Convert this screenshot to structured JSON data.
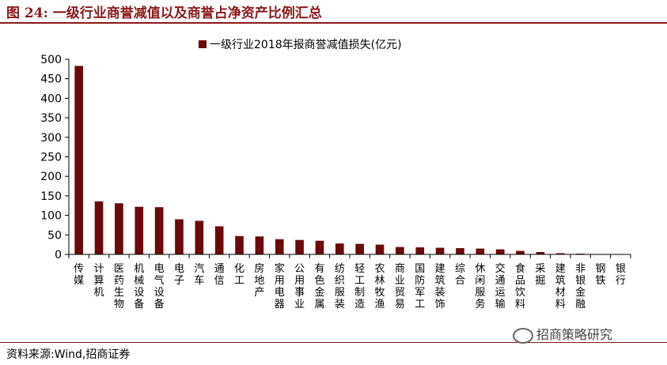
{
  "figure_title": "图 24:  一级行业商誉减值以及商誉占净资产比例汇总",
  "source": "资料来源:Wind,招商证券",
  "watermark": "招商策略研究",
  "colors": {
    "bar": "#6b0a0a",
    "accent": "#8b1a1a"
  },
  "chart_data": {
    "type": "bar",
    "title": "",
    "xlabel": "",
    "ylabel": "",
    "ylim": [
      0,
      500
    ],
    "yticks": [
      0,
      50,
      100,
      150,
      200,
      250,
      300,
      350,
      400,
      450,
      500
    ],
    "grid": false,
    "legend_position": "top-center",
    "categories": [
      "传媒",
      "计算机",
      "医药生物",
      "机械设备",
      "电气设备",
      "电子",
      "汽车",
      "通信",
      "化工",
      "房地产",
      "家用电器",
      "公用事业",
      "有色金属",
      "纺织服装",
      "轻工制造",
      "农林牧渔",
      "商业贸易",
      "国防军工",
      "建筑装饰",
      "综合",
      "休闲服务",
      "交通运输",
      "食品饮料",
      "采掘",
      "建筑材料",
      "非银金融",
      "钢铁",
      "银行"
    ],
    "series": [
      {
        "name": "一级行业2018年报商誉减值损失(亿元)",
        "values": [
          483,
          136,
          131,
          122,
          121,
          90,
          86,
          72,
          47,
          46,
          39,
          37,
          35,
          28,
          27,
          25,
          19,
          18,
          17,
          16,
          15,
          13,
          9,
          6,
          3,
          2,
          0,
          0
        ]
      }
    ]
  }
}
